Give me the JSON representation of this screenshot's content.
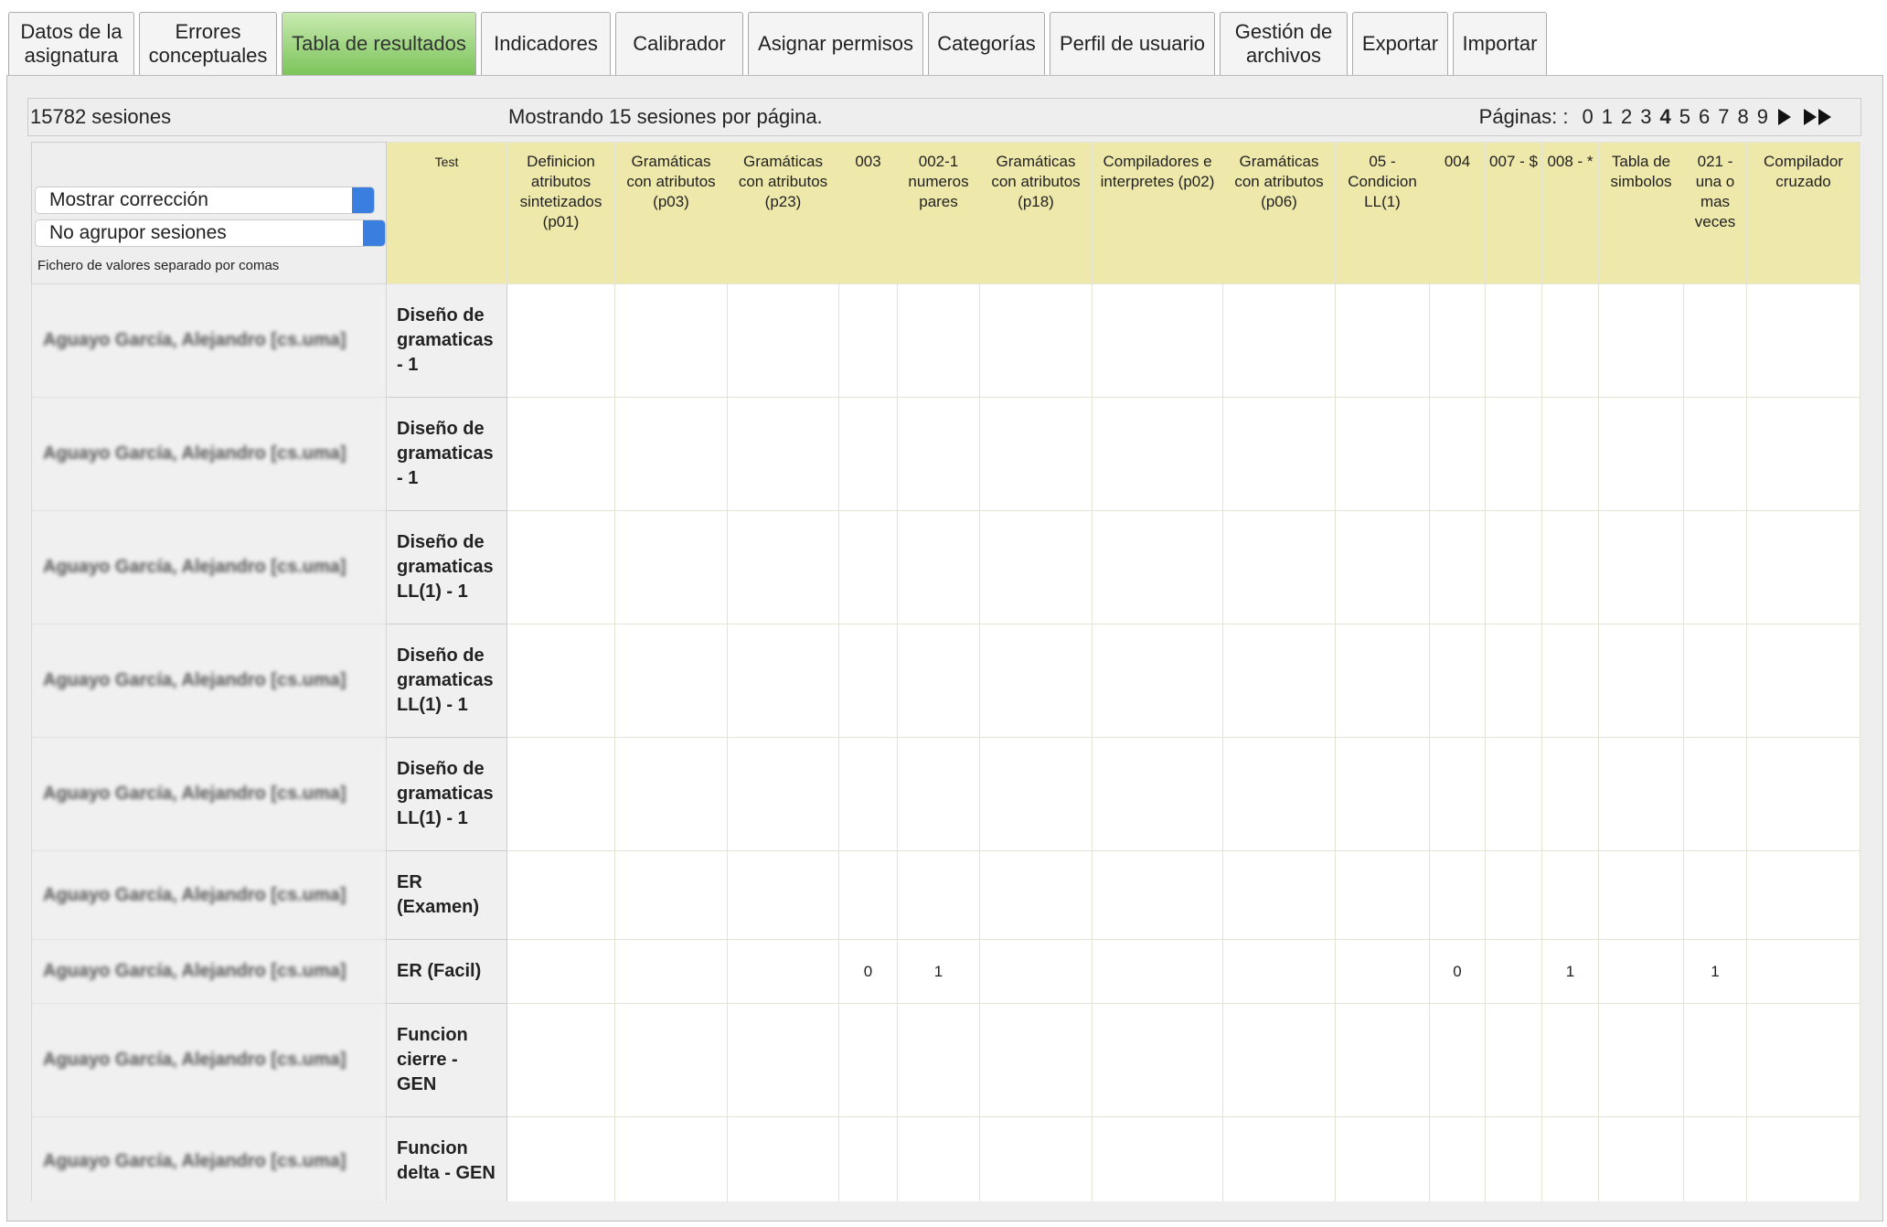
{
  "tabs": [
    {
      "label": "Datos de la asignatura",
      "active": false
    },
    {
      "label": "Errores conceptuales",
      "active": false
    },
    {
      "label": "Tabla de resultados",
      "active": true
    },
    {
      "label": "Indicadores",
      "active": false
    },
    {
      "label": "Calibrador",
      "active": false
    },
    {
      "label": "Asignar permisos",
      "active": false
    },
    {
      "label": "Categorías",
      "active": false
    },
    {
      "label": "Perfil de usuario",
      "active": false
    },
    {
      "label": "Gestión de archivos",
      "active": false
    },
    {
      "label": "Exportar",
      "active": false
    },
    {
      "label": "Importar",
      "active": false
    }
  ],
  "status": {
    "count": "15782 sesiones",
    "per_page": "Mostrando 15 sesiones por página.",
    "pages_label": "Páginas: :",
    "pages": [
      {
        "label": "0",
        "current": false
      },
      {
        "label": "1",
        "current": false
      },
      {
        "label": "2",
        "current": false
      },
      {
        "label": "3",
        "current": false
      },
      {
        "label": "4",
        "current": true
      },
      {
        "label": "5",
        "current": false
      },
      {
        "label": "6",
        "current": false
      },
      {
        "label": "7",
        "current": false
      },
      {
        "label": "8",
        "current": false
      },
      {
        "label": "9",
        "current": false
      }
    ]
  },
  "controls": {
    "show_select": "Mostrar corrección",
    "group_select": "No agrupor sesiones",
    "csv_link": "Fichero de valores separado por comas"
  },
  "table": {
    "test_header": "Test",
    "columns": [
      "Definicion atributos sintetizados (p01)",
      "Gramáticas con atributos (p03)",
      "Gramáticas con atributos (p23)",
      "003",
      "002-1 numeros pares",
      "Gramáticas con atributos (p18)",
      "Compiladores e interpretes (p02)",
      "Gramáticas con atributos (p06)",
      "05 - Condicion LL(1)",
      "004",
      "007 - $",
      "008 - *",
      "Tabla de simbolos",
      "021 - una o mas veces",
      "Compilador cruzado"
    ],
    "rows": [
      {
        "student": "Aguayo García, Alejandro [cs.uma]",
        "test": "Diseño de gramaticas - 1",
        "cells": [
          null,
          null,
          null,
          null,
          null,
          null,
          null,
          null,
          null,
          null,
          null,
          null,
          null,
          null,
          null
        ]
      },
      {
        "student": "Aguayo García, Alejandro [cs.uma]",
        "test": "Diseño de gramaticas - 1",
        "cells": [
          null,
          null,
          null,
          null,
          null,
          null,
          null,
          null,
          null,
          null,
          null,
          null,
          null,
          null,
          null
        ]
      },
      {
        "student": "Aguayo García, Alejandro [cs.uma]",
        "test": "Diseño de gramaticas LL(1) - 1",
        "cells": [
          null,
          null,
          null,
          null,
          null,
          null,
          null,
          null,
          null,
          null,
          null,
          null,
          null,
          null,
          null
        ]
      },
      {
        "student": "Aguayo García, Alejandro [cs.uma]",
        "test": "Diseño de gramaticas LL(1) - 1",
        "cells": [
          null,
          null,
          null,
          null,
          null,
          null,
          null,
          null,
          null,
          null,
          null,
          null,
          null,
          null,
          null
        ]
      },
      {
        "student": "Aguayo García, Alejandro [cs.uma]",
        "test": "Diseño de gramaticas LL(1) - 1",
        "cells": [
          null,
          null,
          null,
          null,
          null,
          null,
          null,
          null,
          null,
          null,
          null,
          null,
          null,
          null,
          null
        ]
      },
      {
        "student": "Aguayo García, Alejandro [cs.uma]",
        "test": "ER (Examen)",
        "cells": [
          null,
          null,
          null,
          null,
          null,
          null,
          null,
          null,
          null,
          null,
          null,
          null,
          null,
          null,
          null
        ]
      },
      {
        "student": "Aguayo García, Alejandro [cs.uma]",
        "test": "ER (Facil)",
        "cells": [
          null,
          null,
          null,
          0,
          1,
          null,
          null,
          null,
          null,
          0,
          null,
          1,
          null,
          1,
          null
        ]
      },
      {
        "student": "Aguayo García, Alejandro [cs.uma]",
        "test": "Funcion cierre - GEN",
        "cells": [
          null,
          null,
          null,
          null,
          null,
          null,
          null,
          null,
          null,
          null,
          null,
          null,
          null,
          null,
          null
        ]
      },
      {
        "student": "Aguayo García, Alejandro [cs.uma]",
        "test": "Funcion delta - GEN",
        "cells": [
          null,
          null,
          null,
          null,
          null,
          null,
          null,
          null,
          null,
          null,
          null,
          null,
          null,
          null,
          null
        ]
      }
    ]
  }
}
